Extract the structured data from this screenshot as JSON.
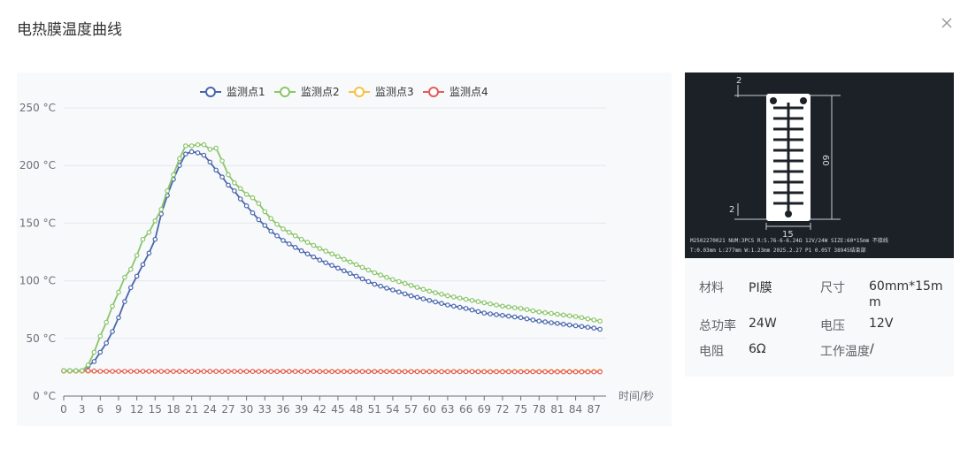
{
  "dialog": {
    "title": "电热膜温度曲线",
    "close_icon": "close-icon"
  },
  "chart_data": {
    "type": "line",
    "y_unit": "°C",
    "xlabel": "时间/秒",
    "ylabel": "",
    "ylim": [
      0,
      250
    ],
    "y_ticks": [
      "0 °C",
      "50 °C",
      "100 °C",
      "150 °C",
      "200 °C",
      "250 °C"
    ],
    "x_ticks": [
      "0",
      "3",
      "6",
      "9",
      "12",
      "15",
      "18",
      "21",
      "24",
      "27",
      "30",
      "33",
      "36",
      "39",
      "42",
      "45",
      "48",
      "51",
      "54",
      "57",
      "60",
      "63",
      "66",
      "69",
      "72",
      "75",
      "78",
      "81",
      "84",
      "87"
    ],
    "xlim": [
      0,
      89
    ],
    "grid": true,
    "legend_position": "top-center",
    "series": [
      {
        "name": "监测点1",
        "color": "#4a66ac",
        "points": [
          [
            0,
            22
          ],
          [
            3,
            22
          ],
          [
            4,
            26
          ],
          [
            5,
            30
          ],
          [
            6,
            38
          ],
          [
            7,
            46
          ],
          [
            8,
            56
          ],
          [
            9,
            68
          ],
          [
            10,
            82
          ],
          [
            11,
            94
          ],
          [
            12,
            104
          ],
          [
            13,
            114
          ],
          [
            14,
            124
          ],
          [
            15,
            136
          ],
          [
            16,
            158
          ],
          [
            17,
            174
          ],
          [
            18,
            188
          ],
          [
            19,
            200
          ],
          [
            20,
            210
          ],
          [
            21,
            212
          ],
          [
            22,
            211
          ],
          [
            23,
            209
          ],
          [
            24,
            203
          ],
          [
            25,
            196
          ],
          [
            26,
            190
          ],
          [
            27,
            183
          ],
          [
            28,
            178
          ],
          [
            29,
            171
          ],
          [
            30,
            165
          ],
          [
            31,
            159
          ],
          [
            32,
            153
          ],
          [
            33,
            148
          ],
          [
            34,
            143
          ],
          [
            35,
            139
          ],
          [
            36,
            135
          ],
          [
            39,
            126
          ],
          [
            42,
            118
          ],
          [
            45,
            111
          ],
          [
            48,
            104
          ],
          [
            51,
            97
          ],
          [
            54,
            92
          ],
          [
            57,
            87
          ],
          [
            60,
            83
          ],
          [
            63,
            79
          ],
          [
            66,
            76
          ],
          [
            69,
            72
          ],
          [
            72,
            70
          ],
          [
            75,
            68
          ],
          [
            78,
            65
          ],
          [
            81,
            63
          ],
          [
            84,
            61
          ],
          [
            87,
            59
          ],
          [
            88,
            58
          ]
        ]
      },
      {
        "name": "监测点2",
        "color": "#8cc56b",
        "points": [
          [
            0,
            22
          ],
          [
            3,
            22
          ],
          [
            4,
            27
          ],
          [
            5,
            38
          ],
          [
            6,
            52
          ],
          [
            7,
            64
          ],
          [
            8,
            78
          ],
          [
            9,
            90
          ],
          [
            10,
            103
          ],
          [
            11,
            110
          ],
          [
            12,
            122
          ],
          [
            13,
            136
          ],
          [
            14,
            142
          ],
          [
            15,
            152
          ],
          [
            16,
            162
          ],
          [
            17,
            178
          ],
          [
            18,
            192
          ],
          [
            19,
            206
          ],
          [
            20,
            217
          ],
          [
            21,
            217
          ],
          [
            22,
            218
          ],
          [
            23,
            218
          ],
          [
            24,
            214
          ],
          [
            25,
            215
          ],
          [
            26,
            204
          ],
          [
            27,
            192
          ],
          [
            28,
            185
          ],
          [
            29,
            180
          ],
          [
            30,
            175
          ],
          [
            31,
            172
          ],
          [
            32,
            167
          ],
          [
            33,
            160
          ],
          [
            34,
            154
          ],
          [
            35,
            149
          ],
          [
            36,
            145
          ],
          [
            39,
            136
          ],
          [
            42,
            128
          ],
          [
            45,
            121
          ],
          [
            48,
            114
          ],
          [
            51,
            107
          ],
          [
            54,
            101
          ],
          [
            57,
            96
          ],
          [
            60,
            91
          ],
          [
            63,
            87
          ],
          [
            66,
            84
          ],
          [
            69,
            81
          ],
          [
            72,
            78
          ],
          [
            75,
            76
          ],
          [
            78,
            73
          ],
          [
            81,
            71
          ],
          [
            84,
            69
          ],
          [
            87,
            66
          ],
          [
            88,
            65
          ]
        ]
      },
      {
        "name": "监测点3",
        "color": "#f5c242",
        "points": [
          [
            0,
            21.5
          ],
          [
            88,
            21.5
          ]
        ]
      },
      {
        "name": "监测点4",
        "color": "#e35d59",
        "points": [
          [
            0,
            22
          ],
          [
            4,
            22
          ],
          [
            6,
            21.5
          ],
          [
            88,
            21
          ]
        ]
      }
    ]
  },
  "product": {
    "image_icon": "heating-film-diagram",
    "dim_top": "2",
    "dim_bottom": "2",
    "dim_height": "60",
    "dim_width": "15",
    "caption_line1": "M2502270021  NUM:3PCS  R:5.76-6-6.24Ω  12V/24W  SIZE:60*15mm  不接线",
    "caption_line2": "T:0.03mm  L:277mm  W:1.23mm  2025.2.27  P1 0.05T  38945结束部",
    "specs": [
      {
        "label": "材料",
        "value": "PI膜"
      },
      {
        "label": "尺寸",
        "value": "60mm*15mm"
      },
      {
        "label": "总功率",
        "value": "24W"
      },
      {
        "label": "电压",
        "value": "12V"
      },
      {
        "label": "电阻",
        "value": "6Ω"
      },
      {
        "label": "工作温度",
        "value": "/"
      }
    ]
  }
}
